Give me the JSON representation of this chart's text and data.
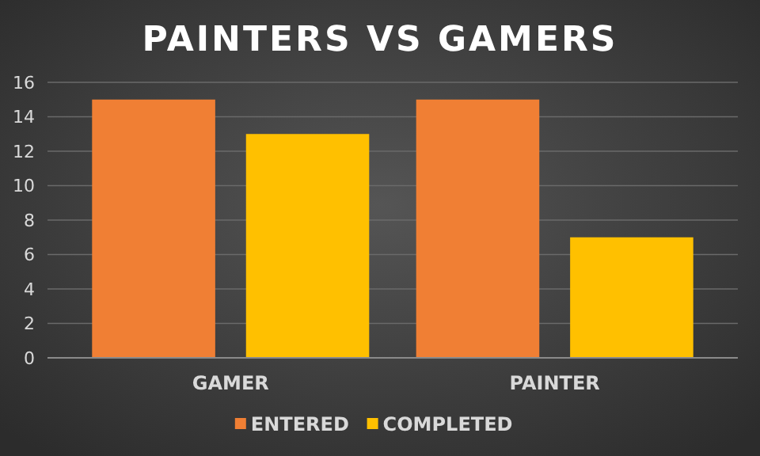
{
  "chart_data": {
    "type": "bar",
    "title": "PAINTERS VS GAMERS",
    "categories": [
      "GAMER",
      "PAINTER"
    ],
    "series": [
      {
        "name": "ENTERED",
        "color": "#f07f34",
        "values": [
          15,
          15
        ]
      },
      {
        "name": "COMPLETED",
        "color": "#ffc000",
        "values": [
          13,
          7
        ]
      }
    ],
    "ylim": [
      0,
      16
    ],
    "yticks": [
      0,
      2,
      4,
      6,
      8,
      10,
      12,
      14,
      16
    ],
    "grid": "y",
    "legend": "bottom"
  }
}
